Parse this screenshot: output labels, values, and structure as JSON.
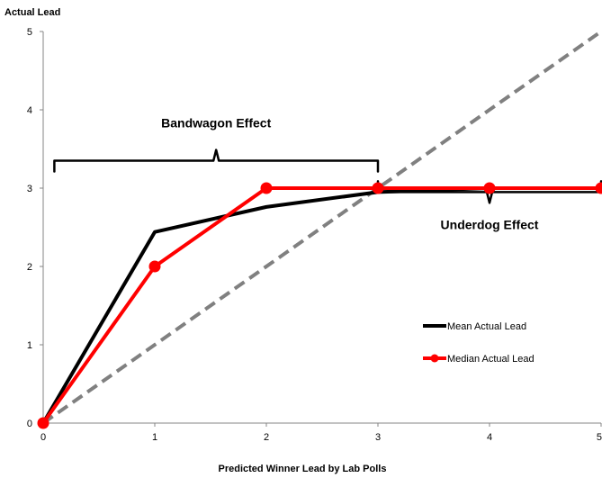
{
  "chart_data": {
    "type": "line",
    "title": "",
    "xlabel": "Predicted Winner Lead by Lab Polls",
    "ylabel": "Actual Lead",
    "xlim": [
      0,
      5
    ],
    "ylim": [
      0,
      5
    ],
    "x_ticks": [
      "0",
      "1",
      "2",
      "3",
      "4",
      "5"
    ],
    "y_ticks": [
      "0",
      "1",
      "2",
      "3",
      "4",
      "5"
    ],
    "grid": false,
    "legend_position": "right",
    "series": [
      {
        "name": "Mean Actual Lead",
        "color": "#000000",
        "marker": "none",
        "points": [
          [
            0,
            0
          ],
          [
            1,
            2.44
          ],
          [
            2,
            2.76
          ],
          [
            3,
            2.95
          ],
          [
            4,
            3.0
          ],
          [
            5,
            3.0
          ]
        ]
      },
      {
        "name": "Median Actual Lead",
        "color": "#ff0000",
        "marker": "circle",
        "points": [
          [
            0,
            0
          ],
          [
            1,
            2
          ],
          [
            2,
            3
          ],
          [
            3,
            3
          ],
          [
            4,
            3
          ],
          [
            5,
            3
          ]
        ]
      }
    ],
    "reference_line": {
      "style": "dashed",
      "color": "#808080",
      "points": [
        [
          0,
          0
        ],
        [
          5,
          5
        ]
      ]
    },
    "annotations": [
      {
        "text": "Bandwagon Effect",
        "x_range": [
          0.1,
          3
        ],
        "y": 3.35,
        "side": "above"
      },
      {
        "text": "Underdog Effect",
        "x_range": [
          3,
          5
        ],
        "y": 2.95,
        "side": "below"
      }
    ]
  }
}
